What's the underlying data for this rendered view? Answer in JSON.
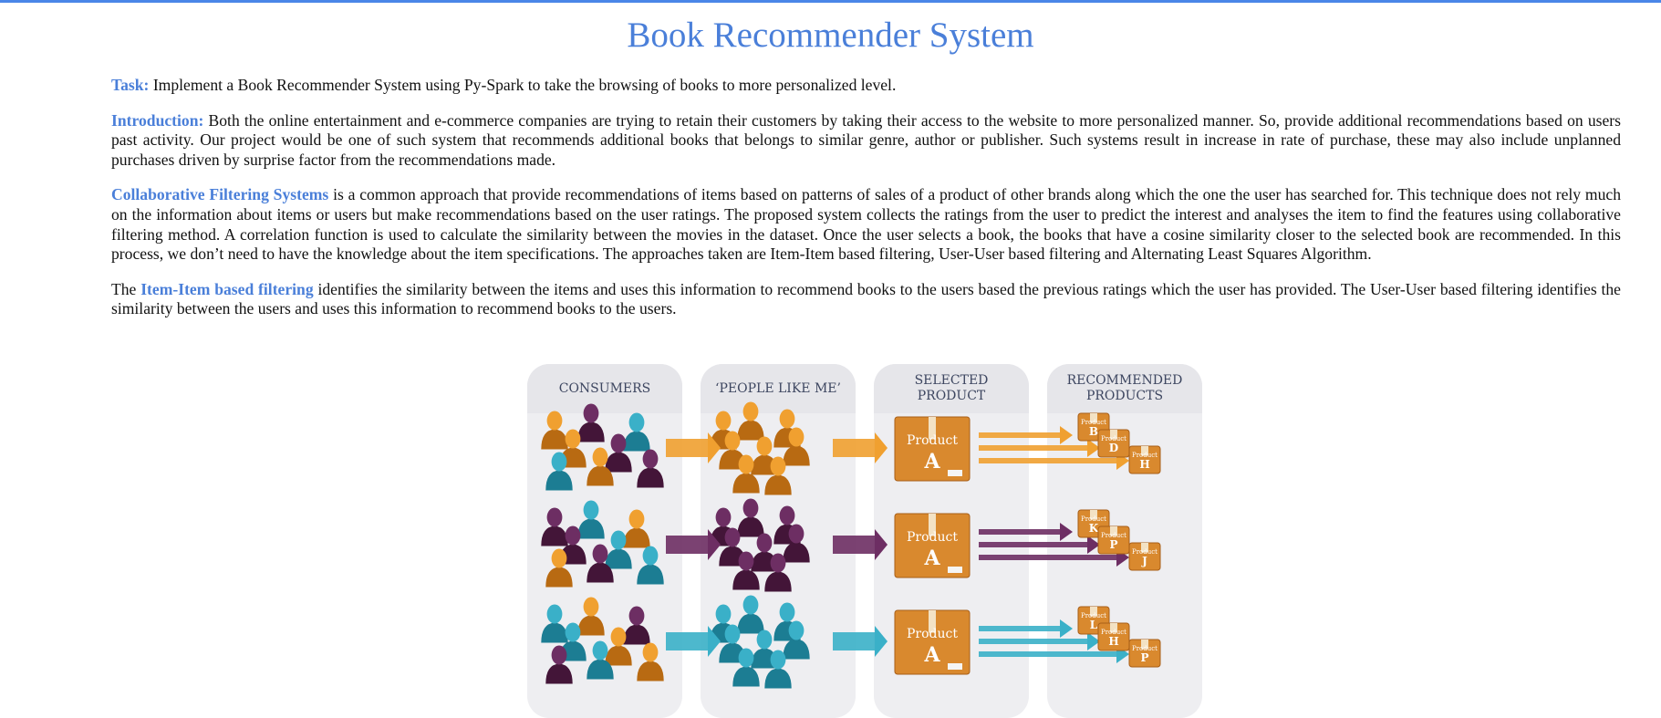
{
  "page": {
    "title": "Book Recommender System"
  },
  "paragraphs": {
    "task": {
      "label": "Task:",
      "text": " Implement a Book Recommender System using Py-Spark to take the browsing of books to more personalized level."
    },
    "introduction": {
      "label": "Introduction:",
      "text": " Both the online entertainment and e-commerce companies are trying to retain their customers by taking their access to the website to more personalized manner. So, provide additional recommendations based on users past activity. Our project would be one of such system that recommends additional books that belongs to similar genre, author or publisher. Such systems result in increase in rate of purchase, these may also include unplanned purchases driven by surprise factor from the recommendations made."
    },
    "collaborative": {
      "label": "Collaborative Filtering Systems",
      "text": " is a common approach that provide recommendations of items based on patterns of sales of a product of other brands along which the one the user has searched for. This technique does not rely much on the information about items or users but make recommendations based on the user ratings. The proposed system collects the ratings from the user to predict the interest and analyses the item to find the features using collaborative filtering method. A correlation function is used to calculate the similarity between the movies in the dataset. Once the user selects a book, the books that have a cosine similarity closer to the selected book are recommended. In this process, we don’t need to have the knowledge about the item specifications. The approaches taken are Item-Item based filtering, User-User based filtering and Alternating Least Squares Algorithm."
    },
    "item_item": {
      "prefix": "The ",
      "label": "Item-Item based filtering",
      "text": " identifies the similarity between the items and uses this information to recommend books to the users based the previous ratings which the user has provided. The User-User based filtering identifies the similarity between the users and uses this information to recommend books to the users."
    }
  },
  "figure": {
    "columns": [
      "CONSUMERS",
      "‘PEOPLE LIKE ME’",
      "SELECTED PRODUCT",
      "RECOMMENDED PRODUCTS"
    ],
    "product_word": "Product",
    "selected_letter": "A",
    "rows": [
      {
        "color": "#f0a030",
        "dark": "#b86a12",
        "recommended": [
          "B",
          "D",
          "H"
        ]
      },
      {
        "color": "#6d2e63",
        "dark": "#431538",
        "recommended": [
          "K",
          "P",
          "J"
        ]
      },
      {
        "color": "#3ab0c8",
        "dark": "#1c7d93",
        "recommended": [
          "L",
          "H",
          "P"
        ]
      }
    ],
    "colors": {
      "panel": "#eeeef1",
      "header": "#e6e6ea",
      "box": "#d9892e",
      "box_dark": "#a85e18"
    }
  }
}
